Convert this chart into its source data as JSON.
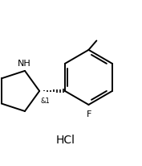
{
  "bg_color": "#ffffff",
  "line_color": "#000000",
  "line_width": 1.4,
  "font_size_label": 7,
  "font_size_hcl": 9,
  "hcl_label": "HCl",
  "N_label": "NH",
  "stereo_label": "&1",
  "F_label": "F",
  "figsize": [
    1.77,
    2.07
  ],
  "dpi": 100
}
